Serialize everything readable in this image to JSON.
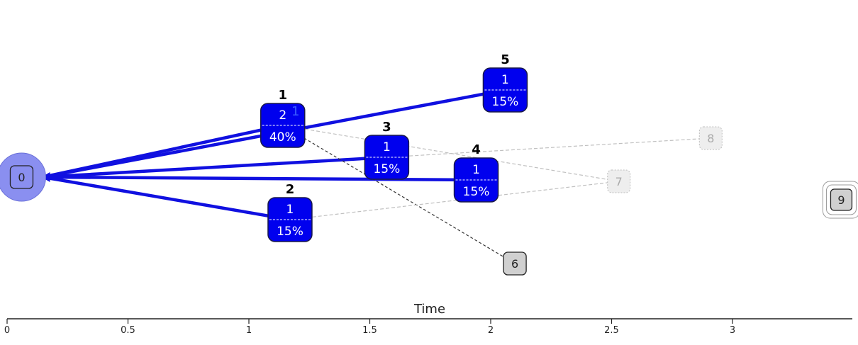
{
  "axis": {
    "label": "Time",
    "ticks": [
      "0",
      "0.5",
      "1",
      "1.5",
      "2",
      "2.5",
      "3"
    ]
  },
  "colors": {
    "active_fill": "#0000ee",
    "active_stroke": "#1a1a4a",
    "edge_active": "#1010e0",
    "edge_faded": "#c0c0c0",
    "edge_dark": "#333333",
    "origin_halo": "#8a8ff0",
    "gray_fill": "#d0d0d0",
    "faded_fill": "#eeeeee"
  },
  "nodes": [
    {
      "id": "0",
      "kind": "origin",
      "time": 0.06,
      "label": "0"
    },
    {
      "id": "1",
      "kind": "active",
      "time": 1.14,
      "title": "1",
      "count": "2",
      "pct": "40%",
      "badge": "1"
    },
    {
      "id": "2",
      "kind": "active",
      "time": 1.17,
      "title": "2",
      "count": "1",
      "pct": "15%"
    },
    {
      "id": "3",
      "kind": "active",
      "time": 1.57,
      "title": "3",
      "count": "1",
      "pct": "15%"
    },
    {
      "id": "4",
      "kind": "active",
      "time": 1.94,
      "title": "4",
      "count": "1",
      "pct": "15%"
    },
    {
      "id": "5",
      "kind": "active",
      "time": 2.06,
      "title": "5",
      "count": "1",
      "pct": "15%"
    },
    {
      "id": "6",
      "kind": "gray",
      "time": 2.1,
      "label": "6"
    },
    {
      "id": "7",
      "kind": "faded",
      "time": 2.53,
      "label": "7"
    },
    {
      "id": "8",
      "kind": "faded",
      "time": 2.91,
      "label": "8"
    },
    {
      "id": "9",
      "kind": "terminal",
      "time": 3.45,
      "label": "9"
    }
  ],
  "edges": [
    {
      "from": "0",
      "to": "1",
      "style": "active"
    },
    {
      "from": "0",
      "to": "2",
      "style": "active"
    },
    {
      "from": "0",
      "to": "3",
      "style": "active"
    },
    {
      "from": "0",
      "to": "4",
      "style": "active"
    },
    {
      "from": "0",
      "to": "5",
      "style": "active"
    },
    {
      "from": "1",
      "to": "6",
      "style": "dark"
    },
    {
      "from": "1",
      "to": "7",
      "style": "faded"
    },
    {
      "from": "2",
      "to": "7",
      "style": "faded"
    },
    {
      "from": "3",
      "to": "8",
      "style": "faded"
    }
  ]
}
